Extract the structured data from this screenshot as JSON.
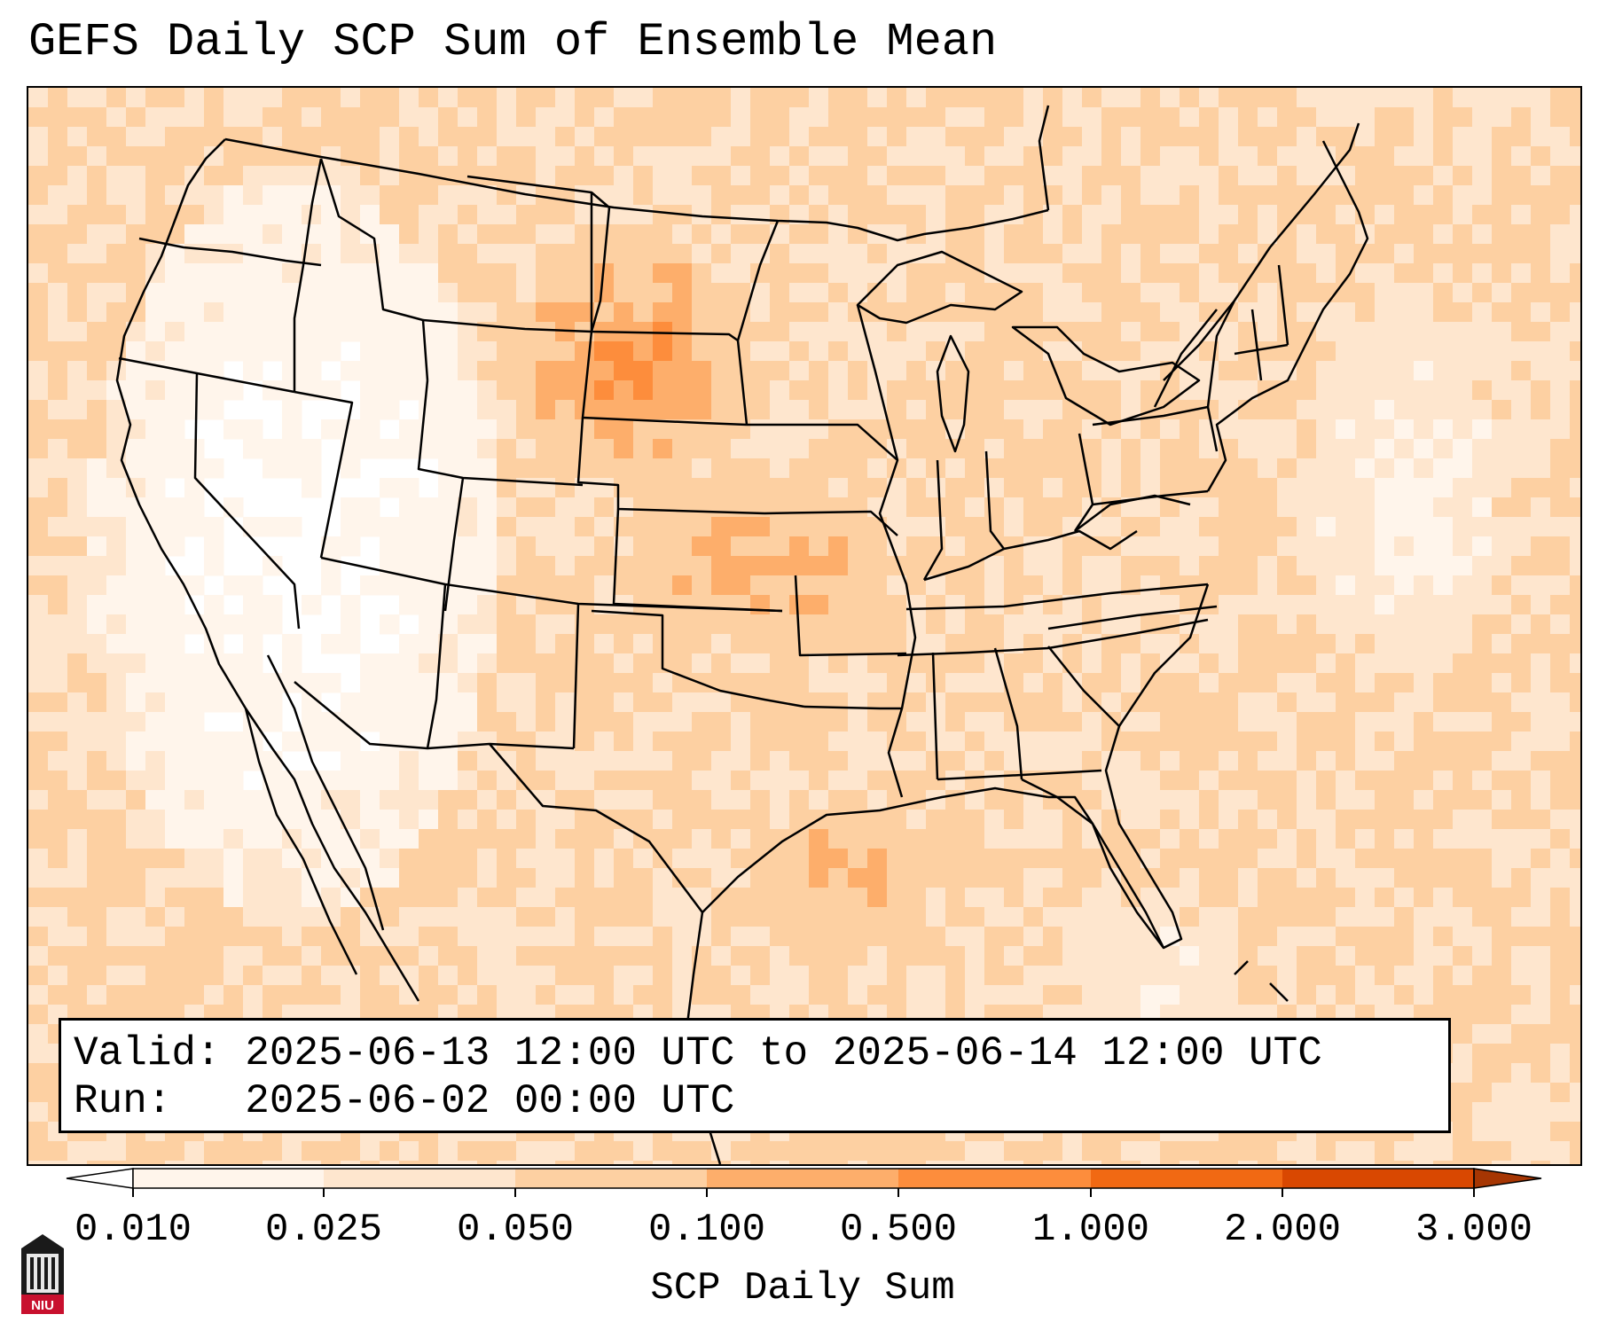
{
  "title": "GEFS Daily SCP Sum of Ensemble Mean",
  "info_box": {
    "valid_label": "Valid:",
    "valid_value": "2025-06-13 12:00 UTC to 2025-06-14 12:00 UTC",
    "run_label": "Run:",
    "run_value": "2025-06-02 00:00 UTC"
  },
  "colorbar": {
    "title": "SCP Daily Sum",
    "ticks": [
      "0.010",
      "0.025",
      "0.050",
      "0.100",
      "0.500",
      "1.000",
      "2.000",
      "3.000"
    ],
    "colors": [
      "#fff5eb",
      "#fee6ce",
      "#fdd0a2",
      "#fdae6b",
      "#fd8d3c",
      "#f16913",
      "#d94801",
      "#a63603"
    ]
  },
  "logo": {
    "text": "NIU"
  }
}
